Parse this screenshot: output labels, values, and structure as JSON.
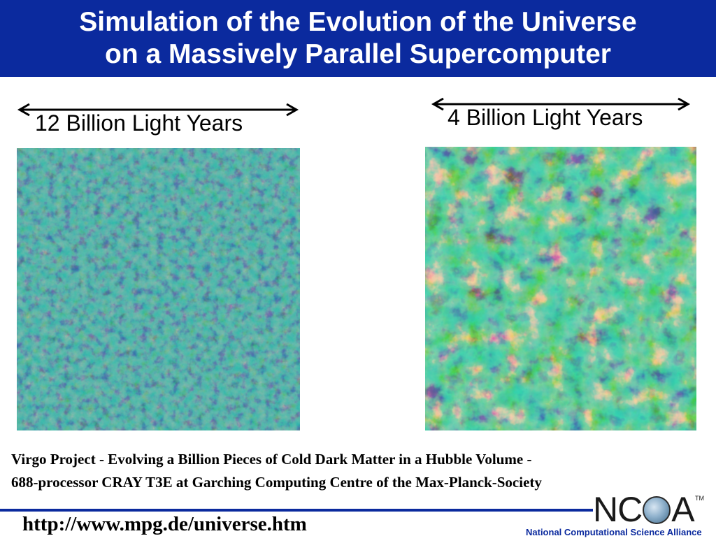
{
  "title": {
    "line1": "Simulation of the Evolution of the Universe",
    "line2": "on a Massively Parallel Supercomputer"
  },
  "panels": {
    "left": {
      "scale_label": "12 Billion Light Years"
    },
    "right": {
      "scale_label": "4 Billion Light Years"
    }
  },
  "caption": {
    "line1": "Virgo Project - Evolving a Billion Pieces of Cold Dark Matter in a Hubble Volume -",
    "line2": "688-processor CRAY T3E at Garching Computing Centre of the Max-Planck-Society"
  },
  "footer": {
    "url": "http://www.mpg.de/universe.htm",
    "logo_left": "NC",
    "logo_right": "A",
    "logo_tm": "TM",
    "org_name": "National Computational Science Alliance"
  },
  "colors": {
    "brand_blue": "#0b2a9e",
    "sim_background": "#1f7a5a",
    "sim_void": "#0c2150",
    "sim_filament": "#c8401a"
  }
}
